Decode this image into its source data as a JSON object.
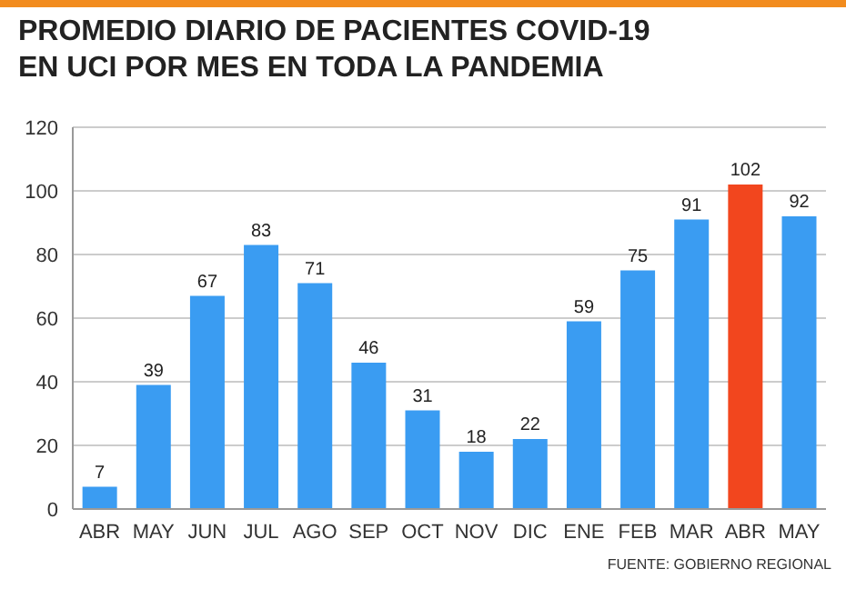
{
  "chart_data": {
    "type": "bar",
    "title": "PROMEDIO DIARIO DE PACIENTES COVID-19\nEN UCI POR MES EN TODA LA PANDEMIA",
    "categories": [
      "ABR",
      "MAY",
      "JUN",
      "JUL",
      "AGO",
      "SEP",
      "OCT",
      "NOV",
      "DIC",
      "ENE",
      "FEB",
      "MAR",
      "ABR",
      "MAY"
    ],
    "values": [
      7,
      39,
      67,
      83,
      71,
      46,
      31,
      18,
      22,
      59,
      75,
      91,
      102,
      92
    ],
    "colors": [
      "#3a9cf2",
      "#3a9cf2",
      "#3a9cf2",
      "#3a9cf2",
      "#3a9cf2",
      "#3a9cf2",
      "#3a9cf2",
      "#3a9cf2",
      "#3a9cf2",
      "#3a9cf2",
      "#3a9cf2",
      "#3a9cf2",
      "#f2461e",
      "#3a9cf2"
    ],
    "ylim": [
      0,
      120
    ],
    "yticks": [
      0,
      20,
      40,
      60,
      80,
      100,
      120
    ],
    "grid": "y",
    "data_labels": true,
    "annotations": [
      "FUENTE: GOBIERNO REGIONAL"
    ]
  }
}
